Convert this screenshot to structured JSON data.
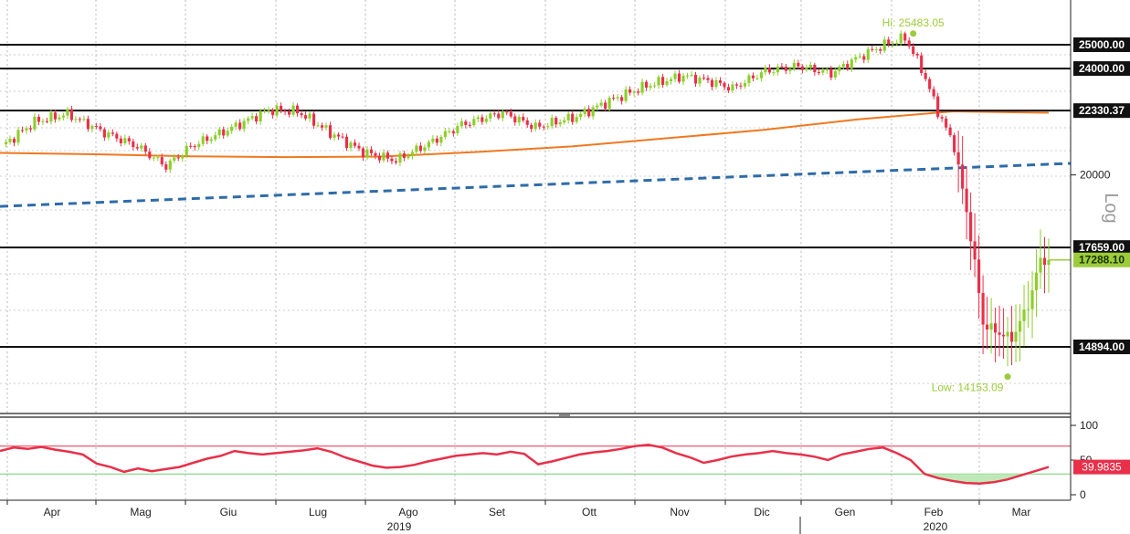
{
  "chart_data": [
    {
      "type": "candlestick",
      "yscale": "log",
      "ylim": [
        13200,
        27000
      ],
      "axis_title": "Log",
      "grid": true,
      "x_months": [
        {
          "label": "Apr",
          "year": "2019"
        },
        {
          "label": "Mag",
          "year": "2019"
        },
        {
          "label": "Giu",
          "year": "2019"
        },
        {
          "label": "Lug",
          "year": "2019"
        },
        {
          "label": "Ago",
          "year": "2019"
        },
        {
          "label": "Set",
          "year": "2019"
        },
        {
          "label": "Ott",
          "year": "2019"
        },
        {
          "label": "Nov",
          "year": "2019"
        },
        {
          "label": "Dic",
          "year": "2019"
        },
        {
          "label": "Gen",
          "year": "2020"
        },
        {
          "label": "Feb",
          "year": "2020"
        },
        {
          "label": "Mar",
          "year": "2020"
        }
      ],
      "x_years": [
        {
          "label": "2019"
        },
        {
          "label": "2020"
        }
      ],
      "y_ticks": [
        20000
      ],
      "horizontal_levels": [
        {
          "value": 25000.0,
          "label": "25000.00"
        },
        {
          "value": 24000.0,
          "label": "24000.00"
        },
        {
          "value": 22330.37,
          "label": "22330.37"
        },
        {
          "value": 17659.0,
          "label": "17659.00"
        },
        {
          "value": 14894.0,
          "label": "14894.00"
        }
      ],
      "last_price": {
        "value": 17288.1,
        "label": "17288.10",
        "color": "#9ccc3c"
      },
      "annotations": [
        {
          "text": "Hi: 25483.05",
          "value": 25483.05,
          "date_index": 222
        },
        {
          "text": "Low: 14153.09",
          "value": 14153.09,
          "date_index": 245
        }
      ],
      "moving_average": {
        "color": "#f07820",
        "values": [
          20770,
          20720,
          20650,
          20620,
          20640,
          20800,
          21000,
          21300,
          21600,
          22000,
          22300,
          22250
        ]
      },
      "trend_line": {
        "color": "#2e6ca8",
        "style": "dashed",
        "start": 18950,
        "end": 20400
      },
      "candle_colors": {
        "up": "#8ccf2a",
        "down": "#e8304a"
      },
      "monthly_closes": [
        21700,
        22200,
        21300,
        20500,
        21600,
        22000,
        20700,
        21900,
        22500,
        23000,
        23600,
        23300,
        24000,
        24700,
        23200,
        22500,
        17000,
        17288.1
      ],
      "key_points": [
        {
          "i": 0,
          "close": 21000
        },
        {
          "i": 8,
          "close": 21900
        },
        {
          "i": 16,
          "close": 22200
        },
        {
          "i": 25,
          "close": 21500
        },
        {
          "i": 33,
          "close": 21000
        },
        {
          "i": 40,
          "close": 20300
        },
        {
          "i": 46,
          "close": 21000
        },
        {
          "i": 55,
          "close": 21600
        },
        {
          "i": 65,
          "close": 22350
        },
        {
          "i": 72,
          "close": 22300
        },
        {
          "i": 80,
          "close": 21500
        },
        {
          "i": 88,
          "close": 20800
        },
        {
          "i": 96,
          "close": 20500
        },
        {
          "i": 104,
          "close": 21100
        },
        {
          "i": 112,
          "close": 21800
        },
        {
          "i": 122,
          "close": 22250
        },
        {
          "i": 130,
          "close": 21700
        },
        {
          "i": 140,
          "close": 22100
        },
        {
          "i": 148,
          "close": 22700
        },
        {
          "i": 157,
          "close": 23300
        },
        {
          "i": 166,
          "close": 23700
        },
        {
          "i": 172,
          "close": 23500
        },
        {
          "i": 178,
          "close": 23200
        },
        {
          "i": 186,
          "close": 23900
        },
        {
          "i": 194,
          "close": 24100
        },
        {
          "i": 202,
          "close": 23800
        },
        {
          "i": 208,
          "close": 24400
        },
        {
          "i": 215,
          "close": 25000
        },
        {
          "i": 220,
          "close": 25300
        },
        {
          "i": 224,
          "close": 24000
        },
        {
          "i": 228,
          "close": 22300
        },
        {
          "i": 232,
          "close": 21000
        },
        {
          "i": 236,
          "close": 18000
        },
        {
          "i": 239,
          "close": 15500
        },
        {
          "i": 242,
          "close": 15300
        },
        {
          "i": 246,
          "close": 15100
        },
        {
          "i": 250,
          "close": 16000
        },
        {
          "i": 253,
          "close": 17288.1
        }
      ]
    },
    {
      "type": "line",
      "ylim": [
        0,
        100
      ],
      "y_ticks": [
        0,
        50,
        100
      ],
      "bands": [
        {
          "value": 70,
          "color": "#e8304a"
        },
        {
          "value": 30,
          "color": "#6fd16f"
        }
      ],
      "series": [
        {
          "color": "#e8304a",
          "last_value_label": "39.9835",
          "values": [
            63,
            68,
            66,
            69,
            65,
            62,
            58,
            45,
            40,
            33,
            38,
            34,
            37,
            40,
            46,
            52,
            56,
            63,
            60,
            58,
            60,
            62,
            64,
            67,
            62,
            54,
            48,
            42,
            39,
            40,
            43,
            48,
            52,
            56,
            58,
            60,
            58,
            62,
            59,
            44,
            48,
            53,
            58,
            61,
            63,
            66,
            70,
            72,
            68,
            60,
            54,
            46,
            50,
            55,
            58,
            60,
            63,
            60,
            58,
            55,
            50,
            58,
            62,
            66,
            68,
            60,
            50,
            30,
            24,
            20,
            17,
            16,
            18,
            22,
            28,
            34,
            39.98
          ]
        }
      ]
    }
  ]
}
